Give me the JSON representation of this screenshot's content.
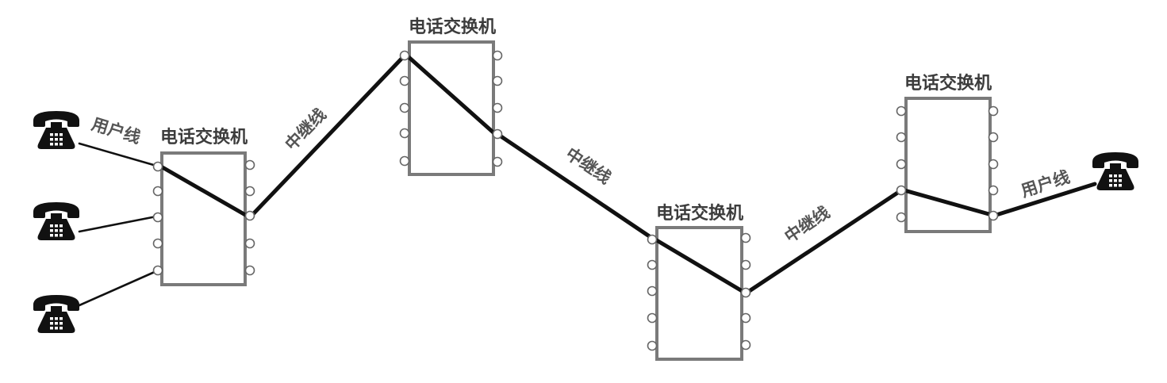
{
  "diagram": {
    "switches": [
      {
        "label": "电话交换机"
      },
      {
        "label": "电话交换机"
      },
      {
        "label": "电话交换机"
      },
      {
        "label": "电话交换机"
      }
    ],
    "line_labels": {
      "user_line_left": "用户线",
      "trunk_1": "中继线",
      "trunk_2": "中继线",
      "trunk_3": "中继线",
      "user_line_right": "用户线"
    }
  },
  "icons": {
    "telephone": "telephone-icon",
    "port": "port-circle"
  },
  "colors": {
    "background": "#ffffff",
    "connection_line": "#111111",
    "switch_border": "#7a7a7a",
    "switch_title": "#3c3c3c",
    "line_label": "#555555",
    "telephone": "#111111"
  }
}
